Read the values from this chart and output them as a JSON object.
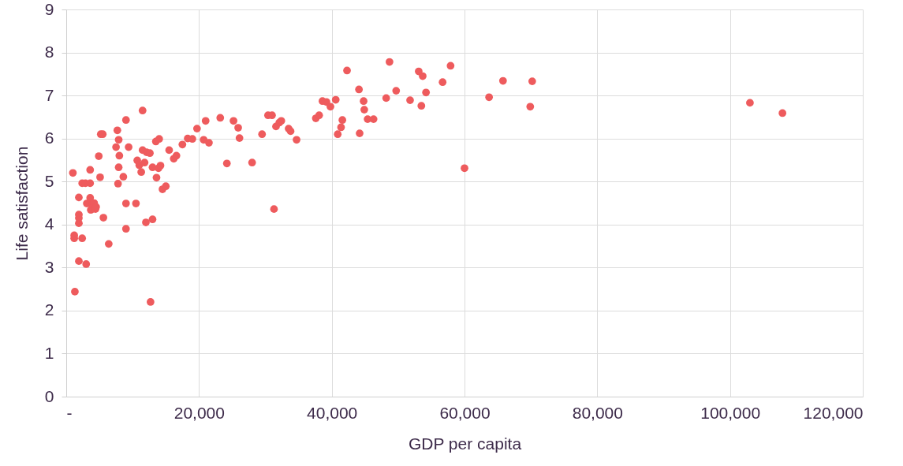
{
  "chart_data": {
    "type": "scatter",
    "xlabel": "GDP per capita",
    "ylabel": "Life satisfaction",
    "x": [
      1000,
      1200,
      1300,
      1200,
      1900,
      1900,
      1900,
      1900,
      1900,
      2400,
      2400,
      2900,
      3000,
      3100,
      3600,
      3600,
      3600,
      3700,
      3900,
      4200,
      4400,
      4500,
      4900,
      5100,
      5200,
      5500,
      5600,
      6400,
      7500,
      7700,
      7800,
      7900,
      8000,
      7900,
      8600,
      9000,
      9000,
      9000,
      9400,
      10500,
      10700,
      11000,
      11300,
      11500,
      11500,
      11800,
      12100,
      12000,
      12600,
      12700,
      13000,
      13000,
      13500,
      13600,
      13900,
      14000,
      14200,
      14500,
      15000,
      15500,
      16200,
      16600,
      17500,
      18300,
      19000,
      19700,
      20700,
      21000,
      21500,
      23200,
      24200,
      25200,
      25900,
      26100,
      28000,
      29500,
      30400,
      31000,
      31300,
      31600,
      32100,
      32400,
      33500,
      33800,
      34700,
      37600,
      38100,
      38600,
      39200,
      39800,
      40600,
      40900,
      41400,
      41600,
      42300,
      44100,
      44200,
      44800,
      44900,
      45400,
      46300,
      48200,
      48700,
      49700,
      51800,
      53100,
      53500,
      53700,
      54200,
      57900,
      56700,
      60000,
      63700,
      65800,
      69900,
      70200,
      103000,
      107900
    ],
    "values": [
      5.2,
      3.68,
      2.44,
      3.75,
      4.63,
      3.15,
      4.03,
      4.15,
      4.23,
      4.96,
      3.68,
      4.96,
      3.08,
      4.49,
      4.96,
      5.27,
      4.62,
      4.34,
      4.47,
      4.5,
      4.36,
      4.41,
      5.59,
      5.1,
      6.1,
      6.1,
      4.16,
      3.55,
      5.8,
      6.19,
      4.95,
      5.33,
      5.6,
      5.97,
      5.11,
      6.43,
      4.49,
      3.9,
      5.8,
      4.49,
      5.49,
      5.38,
      5.22,
      6.65,
      5.73,
      5.44,
      5.68,
      4.05,
      5.66,
      2.2,
      4.12,
      5.33,
      5.93,
      5.09,
      5.31,
      5.99,
      5.37,
      4.82,
      4.89,
      5.73,
      5.53,
      5.6,
      5.86,
      6.0,
      5.99,
      6.23,
      5.97,
      6.41,
      5.9,
      6.48,
      5.42,
      6.41,
      6.25,
      6.01,
      5.44,
      6.1,
      6.54,
      6.54,
      4.36,
      6.28,
      6.37,
      6.41,
      6.23,
      6.17,
      5.97,
      6.47,
      6.54,
      6.87,
      6.85,
      6.74,
      6.9,
      6.1,
      6.26,
      6.43,
      7.58,
      7.14,
      6.12,
      6.87,
      6.67,
      6.45,
      6.45,
      6.94,
      7.78,
      7.11,
      6.89,
      7.56,
      6.76,
      7.45,
      7.07,
      7.69,
      7.31,
      5.31,
      6.96,
      7.34,
      6.74,
      7.33,
      6.83,
      6.59
    ],
    "color": "#ee5b5d",
    "marker": "circle",
    "xlim": [
      0,
      120000
    ],
    "xticks": [
      {
        "value": 0,
        "label": "-"
      },
      {
        "value": 20000,
        "label": "20,000"
      },
      {
        "value": 40000,
        "label": "40,000"
      },
      {
        "value": 60000,
        "label": "60,000"
      },
      {
        "value": 80000,
        "label": "80,000"
      },
      {
        "value": 100000,
        "label": "100,000"
      },
      {
        "value": 120000,
        "label": "120,000"
      }
    ],
    "ylim": [
      0,
      9
    ],
    "yticks": [
      0,
      1,
      2,
      3,
      4,
      5,
      6,
      7,
      8,
      9
    ],
    "grid": true
  }
}
